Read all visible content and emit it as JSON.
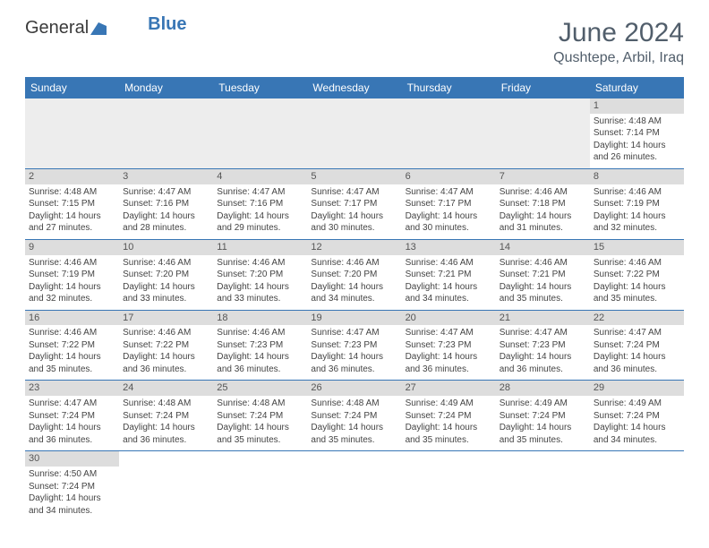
{
  "logo": {
    "part1": "General",
    "part2": "Blue"
  },
  "title": "June 2024",
  "location": "Qushtepe, Arbil, Iraq",
  "colors": {
    "header_bg": "#3876b5",
    "header_text": "#ffffff",
    "daynum_bg": "#dddddd",
    "title_color": "#515e6b",
    "row_divider": "#3876b5"
  },
  "days_of_week": [
    "Sunday",
    "Monday",
    "Tuesday",
    "Wednesday",
    "Thursday",
    "Friday",
    "Saturday"
  ],
  "weeks": [
    [
      null,
      null,
      null,
      null,
      null,
      null,
      {
        "day": "1",
        "sunrise": "Sunrise: 4:48 AM",
        "sunset": "Sunset: 7:14 PM",
        "daylight1": "Daylight: 14 hours",
        "daylight2": "and 26 minutes."
      }
    ],
    [
      {
        "day": "2",
        "sunrise": "Sunrise: 4:48 AM",
        "sunset": "Sunset: 7:15 PM",
        "daylight1": "Daylight: 14 hours",
        "daylight2": "and 27 minutes."
      },
      {
        "day": "3",
        "sunrise": "Sunrise: 4:47 AM",
        "sunset": "Sunset: 7:16 PM",
        "daylight1": "Daylight: 14 hours",
        "daylight2": "and 28 minutes."
      },
      {
        "day": "4",
        "sunrise": "Sunrise: 4:47 AM",
        "sunset": "Sunset: 7:16 PM",
        "daylight1": "Daylight: 14 hours",
        "daylight2": "and 29 minutes."
      },
      {
        "day": "5",
        "sunrise": "Sunrise: 4:47 AM",
        "sunset": "Sunset: 7:17 PM",
        "daylight1": "Daylight: 14 hours",
        "daylight2": "and 30 minutes."
      },
      {
        "day": "6",
        "sunrise": "Sunrise: 4:47 AM",
        "sunset": "Sunset: 7:17 PM",
        "daylight1": "Daylight: 14 hours",
        "daylight2": "and 30 minutes."
      },
      {
        "day": "7",
        "sunrise": "Sunrise: 4:46 AM",
        "sunset": "Sunset: 7:18 PM",
        "daylight1": "Daylight: 14 hours",
        "daylight2": "and 31 minutes."
      },
      {
        "day": "8",
        "sunrise": "Sunrise: 4:46 AM",
        "sunset": "Sunset: 7:19 PM",
        "daylight1": "Daylight: 14 hours",
        "daylight2": "and 32 minutes."
      }
    ],
    [
      {
        "day": "9",
        "sunrise": "Sunrise: 4:46 AM",
        "sunset": "Sunset: 7:19 PM",
        "daylight1": "Daylight: 14 hours",
        "daylight2": "and 32 minutes."
      },
      {
        "day": "10",
        "sunrise": "Sunrise: 4:46 AM",
        "sunset": "Sunset: 7:20 PM",
        "daylight1": "Daylight: 14 hours",
        "daylight2": "and 33 minutes."
      },
      {
        "day": "11",
        "sunrise": "Sunrise: 4:46 AM",
        "sunset": "Sunset: 7:20 PM",
        "daylight1": "Daylight: 14 hours",
        "daylight2": "and 33 minutes."
      },
      {
        "day": "12",
        "sunrise": "Sunrise: 4:46 AM",
        "sunset": "Sunset: 7:20 PM",
        "daylight1": "Daylight: 14 hours",
        "daylight2": "and 34 minutes."
      },
      {
        "day": "13",
        "sunrise": "Sunrise: 4:46 AM",
        "sunset": "Sunset: 7:21 PM",
        "daylight1": "Daylight: 14 hours",
        "daylight2": "and 34 minutes."
      },
      {
        "day": "14",
        "sunrise": "Sunrise: 4:46 AM",
        "sunset": "Sunset: 7:21 PM",
        "daylight1": "Daylight: 14 hours",
        "daylight2": "and 35 minutes."
      },
      {
        "day": "15",
        "sunrise": "Sunrise: 4:46 AM",
        "sunset": "Sunset: 7:22 PM",
        "daylight1": "Daylight: 14 hours",
        "daylight2": "and 35 minutes."
      }
    ],
    [
      {
        "day": "16",
        "sunrise": "Sunrise: 4:46 AM",
        "sunset": "Sunset: 7:22 PM",
        "daylight1": "Daylight: 14 hours",
        "daylight2": "and 35 minutes."
      },
      {
        "day": "17",
        "sunrise": "Sunrise: 4:46 AM",
        "sunset": "Sunset: 7:22 PM",
        "daylight1": "Daylight: 14 hours",
        "daylight2": "and 36 minutes."
      },
      {
        "day": "18",
        "sunrise": "Sunrise: 4:46 AM",
        "sunset": "Sunset: 7:23 PM",
        "daylight1": "Daylight: 14 hours",
        "daylight2": "and 36 minutes."
      },
      {
        "day": "19",
        "sunrise": "Sunrise: 4:47 AM",
        "sunset": "Sunset: 7:23 PM",
        "daylight1": "Daylight: 14 hours",
        "daylight2": "and 36 minutes."
      },
      {
        "day": "20",
        "sunrise": "Sunrise: 4:47 AM",
        "sunset": "Sunset: 7:23 PM",
        "daylight1": "Daylight: 14 hours",
        "daylight2": "and 36 minutes."
      },
      {
        "day": "21",
        "sunrise": "Sunrise: 4:47 AM",
        "sunset": "Sunset: 7:23 PM",
        "daylight1": "Daylight: 14 hours",
        "daylight2": "and 36 minutes."
      },
      {
        "day": "22",
        "sunrise": "Sunrise: 4:47 AM",
        "sunset": "Sunset: 7:24 PM",
        "daylight1": "Daylight: 14 hours",
        "daylight2": "and 36 minutes."
      }
    ],
    [
      {
        "day": "23",
        "sunrise": "Sunrise: 4:47 AM",
        "sunset": "Sunset: 7:24 PM",
        "daylight1": "Daylight: 14 hours",
        "daylight2": "and 36 minutes."
      },
      {
        "day": "24",
        "sunrise": "Sunrise: 4:48 AM",
        "sunset": "Sunset: 7:24 PM",
        "daylight1": "Daylight: 14 hours",
        "daylight2": "and 36 minutes."
      },
      {
        "day": "25",
        "sunrise": "Sunrise: 4:48 AM",
        "sunset": "Sunset: 7:24 PM",
        "daylight1": "Daylight: 14 hours",
        "daylight2": "and 35 minutes."
      },
      {
        "day": "26",
        "sunrise": "Sunrise: 4:48 AM",
        "sunset": "Sunset: 7:24 PM",
        "daylight1": "Daylight: 14 hours",
        "daylight2": "and 35 minutes."
      },
      {
        "day": "27",
        "sunrise": "Sunrise: 4:49 AM",
        "sunset": "Sunset: 7:24 PM",
        "daylight1": "Daylight: 14 hours",
        "daylight2": "and 35 minutes."
      },
      {
        "day": "28",
        "sunrise": "Sunrise: 4:49 AM",
        "sunset": "Sunset: 7:24 PM",
        "daylight1": "Daylight: 14 hours",
        "daylight2": "and 35 minutes."
      },
      {
        "day": "29",
        "sunrise": "Sunrise: 4:49 AM",
        "sunset": "Sunset: 7:24 PM",
        "daylight1": "Daylight: 14 hours",
        "daylight2": "and 34 minutes."
      }
    ],
    [
      {
        "day": "30",
        "sunrise": "Sunrise: 4:50 AM",
        "sunset": "Sunset: 7:24 PM",
        "daylight1": "Daylight: 14 hours",
        "daylight2": "and 34 minutes."
      },
      null,
      null,
      null,
      null,
      null,
      null
    ]
  ]
}
